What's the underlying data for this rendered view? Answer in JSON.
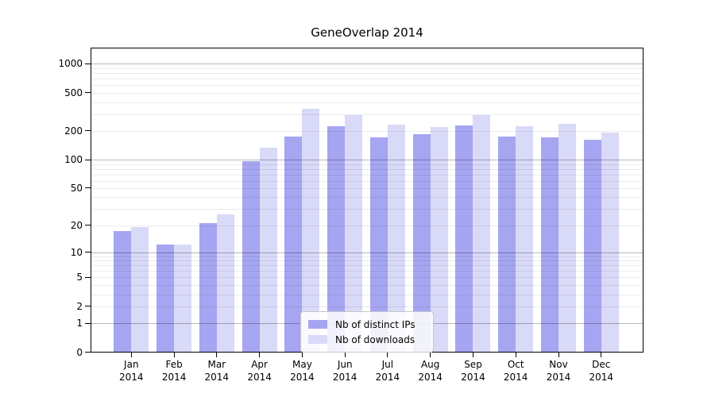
{
  "chart_data": {
    "type": "bar",
    "title": "GeneOverlap 2014",
    "x_year": "2014",
    "categories": [
      "Jan",
      "Feb",
      "Mar",
      "Apr",
      "May",
      "Jun",
      "Jul",
      "Aug",
      "Sep",
      "Oct",
      "Nov",
      "Dec"
    ],
    "series": [
      {
        "name": "Nb of distinct IPs",
        "color": "#a5a5f1",
        "values": [
          17,
          12,
          21,
          96,
          174,
          221,
          170,
          183,
          225,
          172,
          171,
          159
        ]
      },
      {
        "name": "Nb of downloads",
        "color": "#d9d9f8",
        "values": [
          19,
          12,
          26,
          131,
          339,
          292,
          230,
          218,
          290,
          221,
          233,
          191
        ]
      }
    ],
    "y_ticks": [
      0,
      1,
      2,
      5,
      10,
      20,
      50,
      100,
      200,
      500,
      1000
    ],
    "y_scale": "log1p",
    "ylim": [
      0,
      1480
    ],
    "grid": true,
    "legend_position": "lower center",
    "xlabel": "",
    "ylabel": ""
  }
}
